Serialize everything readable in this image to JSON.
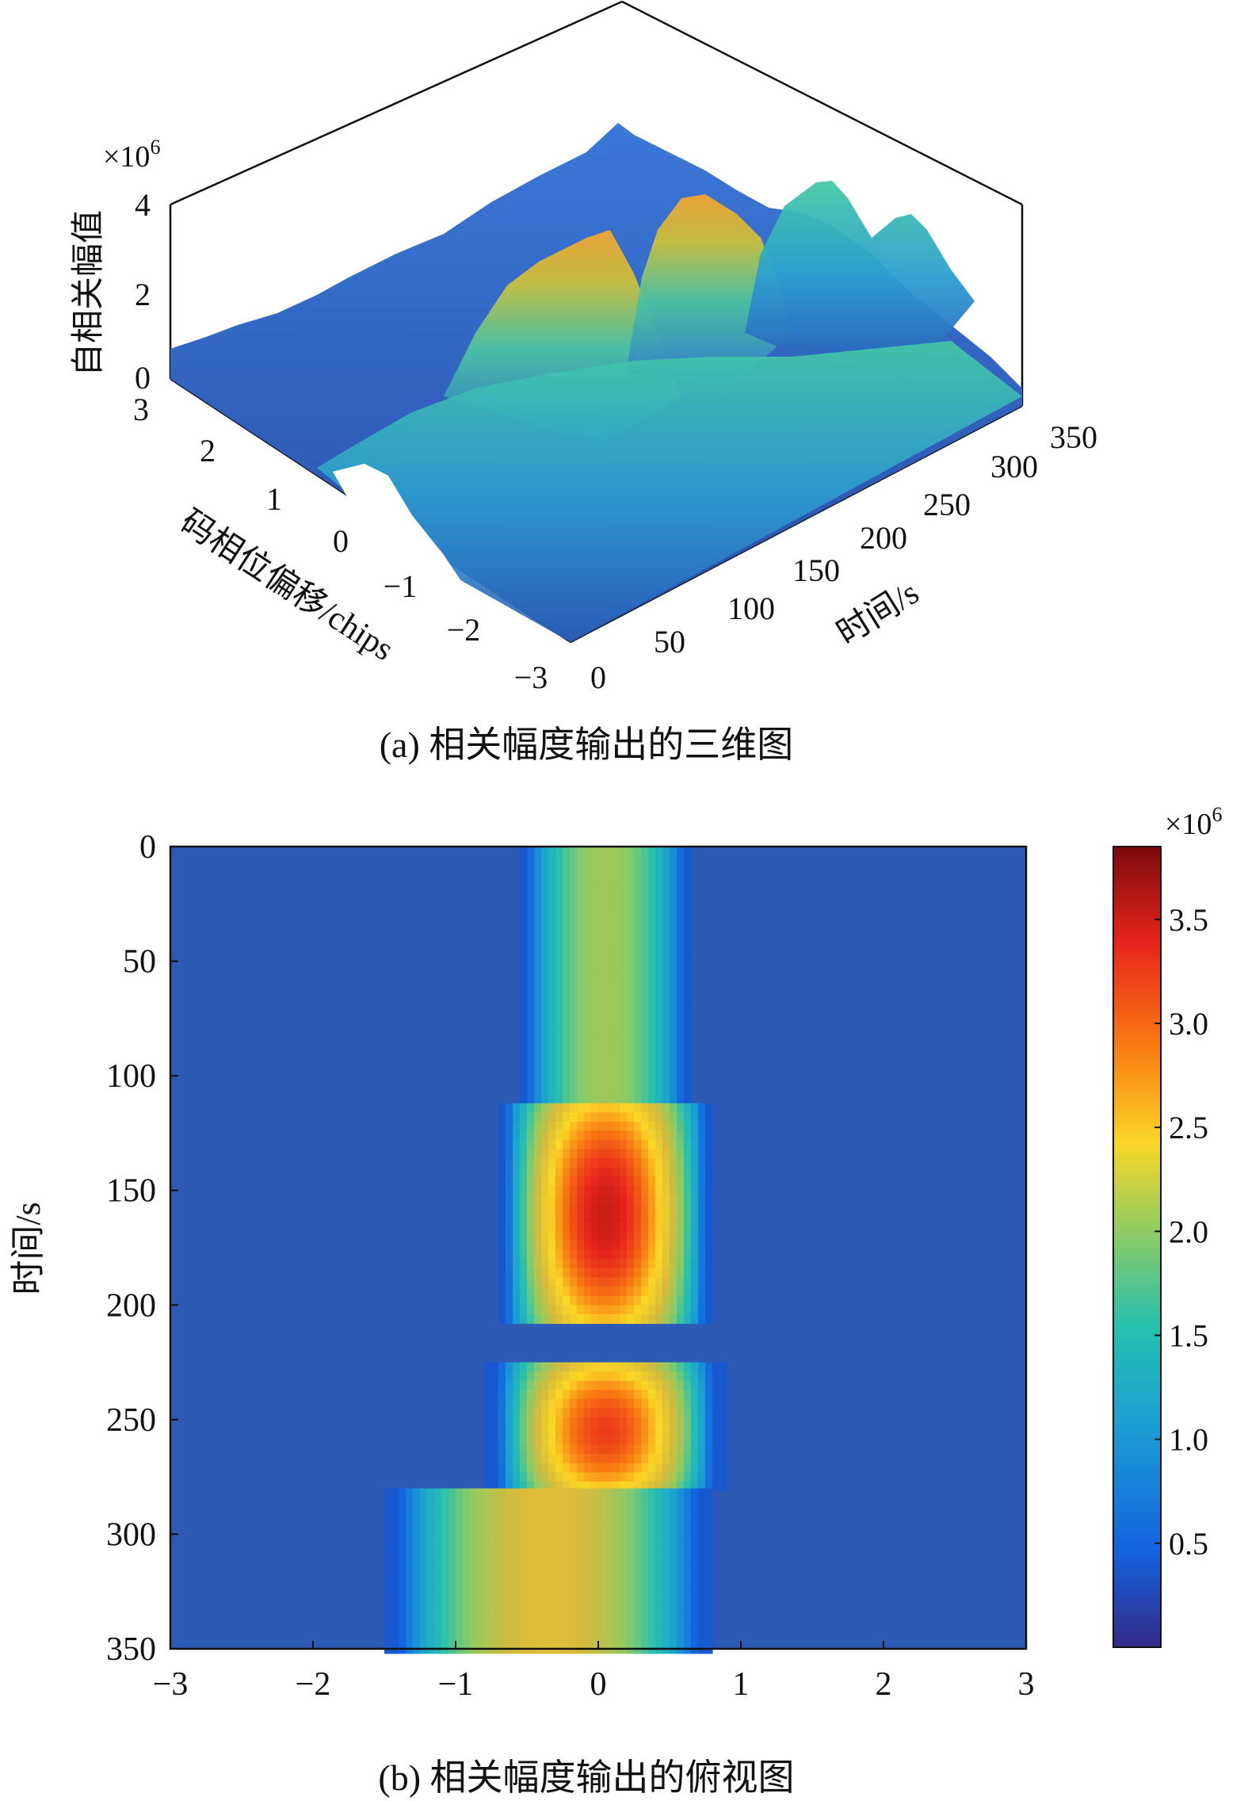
{
  "colors": {
    "colormap": [
      "#352a87",
      "#1363e0",
      "#1c9fd3",
      "#26c0b0",
      "#8fcb62",
      "#d9ba3a",
      "#fbd726",
      "#f97b12",
      "#e8251c",
      "#7b0a0a"
    ],
    "axis": "#111111",
    "heatmap_background": "#2c5ab5"
  },
  "chart_data": [
    {
      "type": "surface3d",
      "caption": "(a) 相关幅度输出的三维图",
      "zlabel": "自相关幅值",
      "xlabel": "码相位偏移/chips",
      "ylabel": "时间/s",
      "z_multiplier": "×10",
      "z_multiplier_exp": "6",
      "zticks": [
        "0",
        "2",
        "4"
      ],
      "xticks": [
        "3",
        "2",
        "1",
        "0",
        "−1",
        "−2",
        "−3"
      ],
      "yticks": [
        "0",
        "50",
        "100",
        "150",
        "200",
        "250",
        "300",
        "350"
      ],
      "zlim": [
        0,
        4000000
      ],
      "xlim": [
        -3,
        3
      ],
      "ylim": [
        0,
        350
      ]
    },
    {
      "type": "heatmap",
      "caption": "(b) 相关幅度输出的俯视图",
      "ylabel": "时间/s",
      "xlim": [
        -3,
        3
      ],
      "ylim": [
        0,
        350
      ],
      "xticks": [
        "−3",
        "−2",
        "−1",
        "0",
        "1",
        "2",
        "3"
      ],
      "yticks": [
        "0",
        "50",
        "100",
        "150",
        "200",
        "250",
        "300",
        "350"
      ],
      "colorbar": {
        "multiplier": "×10",
        "multiplier_exp": "6",
        "ticks": [
          "3.5",
          "3.0",
          "2.5",
          "2.0",
          "1.5",
          "1.0",
          "0.5"
        ],
        "range": [
          0,
          3850000
        ]
      },
      "segments": [
        {
          "t_start": 0,
          "t_end": 112,
          "center_chip": 0.05,
          "peak": 1800000,
          "half_width_chips": 0.55
        },
        {
          "t_start": 112,
          "t_end": 205,
          "center_chip": 0.05,
          "peak": 3550000,
          "half_width_chips": 0.7
        },
        {
          "t_start": 225,
          "t_end": 280,
          "center_chip": 0.05,
          "peak": 3300000,
          "half_width_chips": 0.75
        },
        {
          "t_start": 280,
          "t_end": 350,
          "center_chip": -0.35,
          "peak": 2200000,
          "half_width_chips": 1.05
        }
      ],
      "noise_floor": 350000
    }
  ]
}
